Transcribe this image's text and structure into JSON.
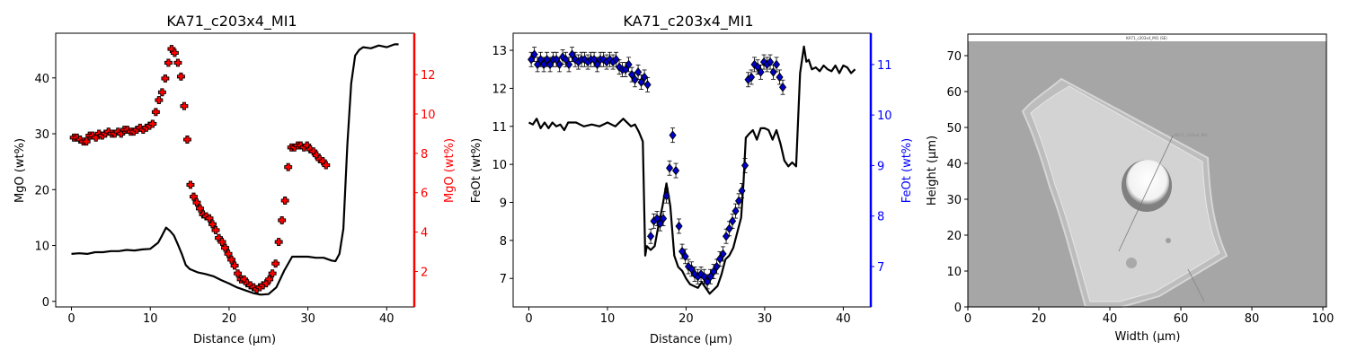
{
  "chart_data": [
    {
      "type": "line",
      "title": "KA71_c203x4_MI1",
      "xlabel": "Distance (µm)",
      "ylabel": "MgO (wt%)",
      "ylabel_right": "MgO (wt%)",
      "xlim": [
        -2,
        43.5
      ],
      "ylim": [
        -1,
        48
      ],
      "ylim_right": [
        0.2,
        14.1
      ],
      "xticks": [
        0,
        10,
        20,
        30,
        40
      ],
      "yticks": [
        0,
        10,
        20,
        30,
        40
      ],
      "yticks_right": [
        2,
        4,
        6,
        8,
        10,
        12
      ],
      "right_axis_color": "#ff0000",
      "series": [
        {
          "axis": "left",
          "style": "line",
          "color": "#000000",
          "x": [
            0,
            1,
            2,
            3,
            4,
            5,
            6,
            7,
            8,
            9,
            10,
            11,
            11.5,
            12,
            12.5,
            13,
            13.5,
            14,
            14.5,
            15,
            16,
            17,
            18,
            19,
            20,
            21,
            22,
            23,
            24,
            25,
            26,
            27,
            28,
            29,
            30,
            31,
            32,
            33,
            33.5,
            34,
            34.5,
            35,
            35.5,
            36,
            36.5,
            37,
            38,
            39,
            40,
            41,
            41.5
          ],
          "y": [
            8.5,
            8.6,
            8.5,
            8.8,
            8.8,
            9.0,
            9.0,
            9.2,
            9.1,
            9.3,
            9.4,
            10.5,
            11.8,
            13.2,
            12.6,
            11.8,
            10.2,
            8.5,
            6.5,
            5.8,
            5.2,
            4.9,
            4.5,
            3.8,
            3.2,
            2.5,
            2.0,
            1.5,
            1.2,
            1.3,
            2.5,
            5.5,
            8.0,
            8.0,
            8.0,
            7.8,
            7.8,
            7.3,
            7.2,
            8.5,
            13.0,
            28.0,
            39.0,
            44.0,
            45.0,
            45.5,
            45.3,
            45.8,
            45.5,
            46.0,
            46.0
          ]
        },
        {
          "axis": "right",
          "style": "marker",
          "color": "#ff0000",
          "x": [
            0.3,
            0.7,
            1.1,
            1.5,
            1.9,
            2.3,
            2.7,
            3.1,
            3.5,
            3.9,
            4.3,
            4.7,
            5.1,
            5.5,
            5.9,
            6.3,
            6.7,
            7.1,
            7.5,
            7.9,
            8.3,
            8.7,
            9.1,
            9.5,
            9.9,
            10.3,
            10.7,
            11.1,
            11.5,
            11.9,
            12.3,
            12.7,
            13.1,
            13.5,
            13.9,
            14.3,
            14.7,
            15.1,
            15.5,
            15.9,
            16.3,
            16.7,
            17.1,
            17.5,
            17.9,
            18.3,
            18.7,
            19.1,
            19.5,
            19.9,
            20.3,
            20.7,
            21.1,
            21.5,
            21.9,
            22.3,
            22.7,
            23.1,
            23.5,
            23.9,
            24.3,
            24.7,
            25.1,
            25.5,
            25.9,
            26.3,
            26.7,
            27.1,
            27.5,
            27.9,
            28.3,
            28.7,
            29.1,
            29.5,
            29.9,
            30.3,
            30.7,
            31.1,
            31.5,
            31.9,
            32.3
          ],
          "y": [
            8.8,
            8.8,
            8.7,
            8.6,
            8.6,
            8.9,
            8.9,
            8.8,
            9.0,
            8.9,
            9.0,
            9.1,
            9.0,
            9.0,
            9.1,
            9.0,
            9.2,
            9.2,
            9.1,
            9.1,
            9.2,
            9.3,
            9.2,
            9.3,
            9.4,
            9.5,
            10.1,
            10.7,
            11.1,
            11.8,
            12.6,
            13.3,
            13.1,
            12.6,
            11.9,
            10.4,
            8.7,
            6.4,
            5.8,
            5.5,
            5.2,
            4.9,
            4.8,
            4.7,
            4.4,
            4.1,
            3.7,
            3.5,
            3.2,
            2.9,
            2.6,
            2.3,
            1.9,
            1.6,
            1.6,
            1.4,
            1.3,
            1.2,
            1.1,
            1.2,
            1.3,
            1.4,
            1.6,
            1.9,
            2.4,
            3.5,
            4.6,
            5.6,
            7.3,
            8.3,
            8.3,
            8.4,
            8.4,
            8.3,
            8.4,
            8.2,
            8.1,
            7.9,
            7.7,
            7.6,
            7.4
          ]
        }
      ]
    },
    {
      "type": "line",
      "title": "KA71_c203x4_MI1",
      "xlabel": "Distance (µm)",
      "ylabel": "FeOt (wt%)",
      "ylabel_right": "FeOt (wt%)",
      "xlim": [
        -2,
        43.5
      ],
      "ylim": [
        6.25,
        13.45
      ],
      "ylim_right": [
        6.2,
        11.62
      ],
      "xticks": [
        0,
        10,
        20,
        30,
        40
      ],
      "yticks": [
        7,
        8,
        9,
        10,
        11,
        12,
        13
      ],
      "yticks_right": [
        7,
        8,
        9,
        10,
        11
      ],
      "right_axis_color": "#0000ff",
      "series": [
        {
          "axis": "left",
          "style": "line",
          "color": "#000000",
          "x": [
            0,
            0.5,
            1,
            1.5,
            2,
            2.5,
            3,
            3.5,
            4,
            4.5,
            5,
            5.5,
            6,
            7,
            8,
            9,
            10,
            11,
            12,
            13,
            13.5,
            14,
            14.5,
            14.8,
            15,
            15.5,
            16,
            16.5,
            17,
            17.5,
            18,
            18.5,
            19,
            19.5,
            20,
            20.5,
            21,
            21.5,
            22,
            22.5,
            23,
            23.5,
            24,
            24.5,
            25,
            25.5,
            26,
            26.5,
            27,
            27.3,
            27.6,
            28,
            28.5,
            29,
            29.5,
            30,
            30.5,
            31,
            31.5,
            32,
            32.5,
            33,
            33.5,
            34,
            34.5,
            35,
            35.3,
            35.6,
            36,
            36.5,
            37,
            37.5,
            38,
            38.5,
            39,
            39.5,
            40,
            40.5,
            41,
            41.5
          ],
          "y": [
            11.1,
            11.05,
            11.2,
            10.95,
            11.1,
            10.95,
            11.1,
            11.0,
            11.05,
            10.9,
            11.1,
            11.1,
            11.1,
            11.0,
            11.05,
            11.0,
            11.1,
            11.0,
            11.2,
            11.0,
            11.05,
            10.85,
            10.6,
            7.6,
            7.85,
            7.75,
            7.85,
            8.4,
            8.9,
            9.5,
            8.9,
            7.6,
            7.3,
            7.2,
            7.0,
            6.85,
            6.8,
            6.75,
            6.9,
            6.75,
            6.6,
            6.7,
            6.8,
            7.1,
            7.5,
            7.6,
            7.8,
            8.2,
            8.6,
            9.5,
            10.7,
            10.8,
            10.9,
            10.65,
            10.95,
            10.95,
            10.9,
            10.65,
            10.9,
            10.55,
            10.1,
            9.95,
            10.05,
            9.95,
            12.4,
            13.1,
            12.7,
            12.75,
            12.5,
            12.55,
            12.45,
            12.6,
            12.5,
            12.45,
            12.6,
            12.4,
            12.6,
            12.55,
            12.4,
            12.5
          ]
        },
        {
          "axis": "right",
          "style": "marker",
          "color": "#0000cc",
          "x": [
            0.3,
            0.7,
            1.1,
            1.5,
            1.9,
            2.3,
            2.7,
            3.1,
            3.5,
            3.9,
            4.3,
            4.7,
            5.1,
            5.5,
            5.9,
            6.3,
            6.7,
            7.1,
            7.5,
            7.9,
            8.3,
            8.7,
            9.1,
            9.5,
            9.9,
            10.3,
            10.7,
            11.1,
            11.5,
            11.9,
            12.3,
            12.7,
            13.1,
            13.5,
            13.9,
            14.3,
            14.7,
            15.1,
            15.5,
            15.9,
            16.3,
            16.7,
            17.1,
            17.5,
            17.9,
            18.3,
            18.7,
            19.1,
            19.5,
            19.9,
            20.3,
            20.7,
            21.1,
            21.5,
            21.9,
            22.3,
            22.7,
            23.1,
            23.5,
            23.9,
            24.3,
            24.7,
            25.1,
            25.5,
            25.9,
            26.3,
            26.7,
            27.1,
            27.5,
            27.9,
            28.3,
            28.7,
            29.1,
            29.5,
            29.9,
            30.3,
            30.7,
            31.1,
            31.5,
            31.9,
            32.3
          ],
          "y": [
            11.1,
            11.2,
            11.0,
            11.1,
            11.0,
            11.1,
            11.0,
            11.1,
            11.1,
            11.0,
            11.15,
            11.1,
            11.0,
            11.2,
            11.1,
            11.05,
            11.1,
            11.1,
            11.05,
            11.1,
            11.1,
            11.0,
            11.1,
            11.1,
            11.05,
            11.1,
            11.05,
            11.1,
            10.95,
            10.9,
            10.9,
            11.0,
            10.8,
            10.7,
            10.85,
            10.65,
            10.75,
            10.6,
            7.6,
            7.9,
            7.95,
            7.85,
            7.95,
            8.4,
            8.95,
            9.6,
            8.9,
            7.8,
            7.3,
            7.2,
            7.0,
            6.95,
            6.85,
            6.8,
            6.85,
            6.8,
            6.7,
            6.8,
            6.9,
            7.0,
            7.15,
            7.25,
            7.6,
            7.75,
            7.9,
            8.1,
            8.3,
            8.5,
            9.0,
            10.7,
            10.75,
            11.0,
            10.95,
            10.85,
            11.05,
            11.0,
            11.05,
            10.85,
            11.0,
            10.75,
            10.55
          ]
        }
      ]
    },
    {
      "type": "image",
      "xlabel": "Width (µm)",
      "ylabel": "Height (µm)",
      "xlim": [
        0,
        101
      ],
      "ylim": [
        0,
        76
      ],
      "xticks": [
        0,
        20,
        40,
        60,
        80,
        100
      ],
      "yticks": [
        0,
        10,
        20,
        30,
        40,
        50,
        60,
        70
      ],
      "image_caption": "KA71_c203x4_MI1 (SE)",
      "profile_label": "KA71_c203x4_MI1",
      "profile_line": [
        [
          42.5,
          15.5
        ],
        [
          57.8,
          47.8
        ]
      ]
    }
  ]
}
